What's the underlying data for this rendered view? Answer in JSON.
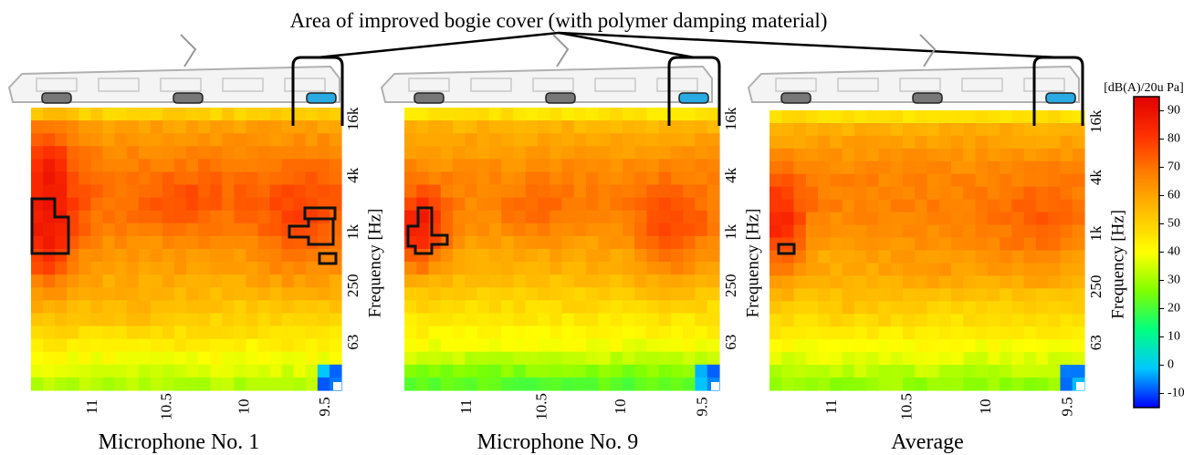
{
  "header": {
    "annotation": "Area of improved bogie cover (with polymer damping material)"
  },
  "colorbar": {
    "unit_label": "[dB(A)/20u Pa]",
    "ticks": [
      90,
      80,
      70,
      60,
      50,
      40,
      30,
      20,
      10,
      0,
      -10
    ],
    "range": [
      -15,
      95
    ],
    "colors": {
      "stops": [
        "#0000ff",
        "#00c8ff",
        "#00ff80",
        "#80ff00",
        "#ffff00",
        "#ffc000",
        "#ff8000",
        "#ff3000",
        "#e00000"
      ]
    }
  },
  "colors": {
    "bogie_gray": "#777777",
    "bogie_blue": "#29aae2",
    "train_line": "#b0b0b0",
    "outline": "#111111"
  },
  "chart_data": [
    {
      "type": "heatmap",
      "title": "Microphone No. 1",
      "xlabel": "",
      "ylabel": "Frequency [Hz]",
      "x_ticks": [
        "11",
        "10.5",
        "10",
        "9.5"
      ],
      "y_ticks": [
        "16k",
        "4k",
        "1k",
        "250",
        "63"
      ],
      "profile": "mic1",
      "highlighted_regions": 4
    },
    {
      "type": "heatmap",
      "title": "Microphone No. 9",
      "xlabel": "",
      "ylabel": "Frequency [Hz]",
      "x_ticks": [
        "11",
        "10.5",
        "10",
        "9.5"
      ],
      "y_ticks": [
        "16k",
        "4k",
        "1k",
        "250",
        "63"
      ],
      "profile": "mic9",
      "highlighted_regions": 1
    },
    {
      "type": "heatmap",
      "title": "Average",
      "xlabel": "",
      "ylabel": "Frequency [Hz]",
      "x_ticks": [
        "11",
        "10.5",
        "10",
        "9.5"
      ],
      "y_ticks": [
        "16k",
        "4k",
        "1k",
        "250",
        "63"
      ],
      "profile": "avg",
      "highlighted_regions": 1
    }
  ]
}
